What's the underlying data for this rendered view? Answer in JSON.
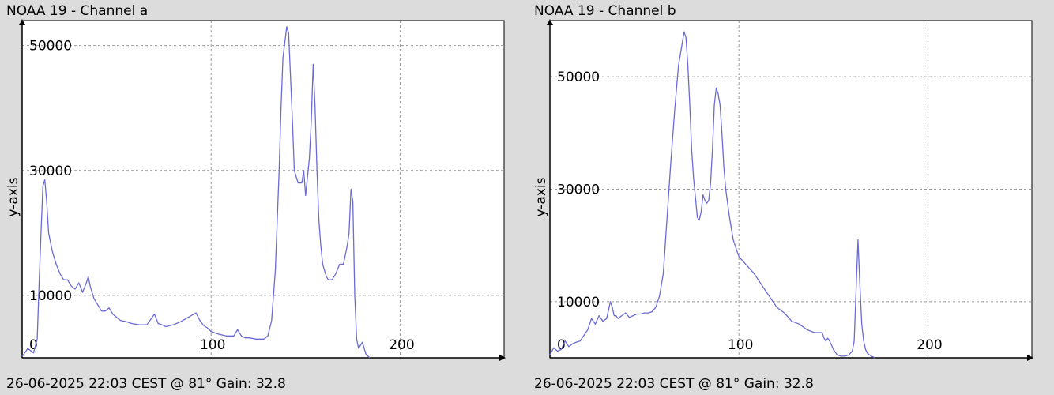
{
  "panels": [
    {
      "title": "NOAA 19 - Channel a",
      "footer": "26-06-2025 22:03 CEST @ 81° Gain: 32.8"
    },
    {
      "title": "NOAA 19 - Channel b",
      "footer": "26-06-2025 22:03 CEST @ 81° Gain: 32.8"
    }
  ],
  "colors": {
    "series": "#6b6bd6",
    "background": "#dcdcdc",
    "plot": "#ffffff"
  },
  "chart_data": [
    {
      "type": "line",
      "title": "NOAA 19 - Channel a",
      "xlabel": "",
      "ylabel": "y-axis",
      "xlim": [
        0,
        255
      ],
      "ylim": [
        0,
        54000
      ],
      "xticks": [
        {
          "value": 100,
          "label": "100"
        },
        {
          "value": 200,
          "label": "200"
        }
      ],
      "yticks": [
        {
          "value": 10000,
          "label": "10000"
        },
        {
          "value": 30000,
          "label": "30000"
        },
        {
          "value": 50000,
          "label": "50000"
        }
      ],
      "y_zero_label": "0",
      "grid": true,
      "series": [
        {
          "x": [
            0,
            3,
            6,
            8,
            9,
            10,
            11,
            12,
            13,
            14,
            16,
            18,
            20,
            22,
            24,
            26,
            28,
            30,
            32,
            34,
            35,
            36,
            38,
            40,
            42,
            44,
            46,
            48,
            50,
            52,
            55,
            58,
            62,
            66,
            70,
            72,
            74,
            76,
            80,
            84,
            88,
            92,
            94,
            96,
            98,
            100,
            104,
            108,
            112,
            114,
            116,
            118,
            120,
            124,
            128,
            130,
            132,
            134,
            136,
            137,
            138,
            140,
            141,
            142,
            143,
            144,
            146,
            148,
            149,
            150,
            152,
            153,
            154,
            155,
            156,
            157,
            158,
            159,
            160,
            161,
            162,
            164,
            166,
            168,
            170,
            172,
            173,
            174,
            175,
            176,
            177,
            178,
            180,
            182,
            184
          ],
          "y": [
            200,
            1500,
            800,
            3000,
            12000,
            20000,
            27500,
            28500,
            25000,
            20000,
            17000,
            15000,
            13500,
            12500,
            12500,
            11500,
            11000,
            12000,
            10500,
            12000,
            13000,
            11500,
            9500,
            8500,
            7500,
            7500,
            8000,
            7000,
            6500,
            6000,
            5800,
            5500,
            5300,
            5300,
            7000,
            5500,
            5300,
            5000,
            5300,
            5800,
            6500,
            7200,
            6000,
            5200,
            4800,
            4200,
            3800,
            3500,
            3500,
            4500,
            3500,
            3200,
            3200,
            3000,
            3000,
            3500,
            6000,
            14000,
            30000,
            40000,
            48000,
            53000,
            52000,
            45000,
            38000,
            30000,
            28000,
            28000,
            30000,
            26000,
            32000,
            38000,
            47000,
            40000,
            30000,
            22000,
            18000,
            15000,
            14000,
            13000,
            12500,
            12500,
            13500,
            15000,
            15000,
            18000,
            20000,
            27000,
            25000,
            10000,
            3000,
            1500,
            2500,
            500,
            0
          ]
        }
      ]
    },
    {
      "type": "line",
      "title": "NOAA 19 - Channel b",
      "xlabel": "",
      "ylabel": "y-axis",
      "xlim": [
        0,
        255
      ],
      "ylim": [
        0,
        60000
      ],
      "xticks": [
        {
          "value": 100,
          "label": "100"
        },
        {
          "value": 200,
          "label": "200"
        }
      ],
      "yticks": [
        {
          "value": 10000,
          "label": "10000"
        },
        {
          "value": 30000,
          "label": "30000"
        },
        {
          "value": 50000,
          "label": "50000"
        }
      ],
      "y_zero_label": "0",
      "grid": true,
      "series": [
        {
          "x": [
            0,
            2,
            4,
            6,
            8,
            10,
            12,
            14,
            16,
            18,
            20,
            22,
            24,
            26,
            28,
            30,
            32,
            33,
            34,
            35,
            36,
            38,
            40,
            42,
            44,
            46,
            48,
            50,
            52,
            54,
            56,
            58,
            60,
            62,
            64,
            66,
            68,
            70,
            71,
            72,
            73,
            74,
            75,
            76,
            77,
            78,
            79,
            80,
            81,
            82,
            83,
            84,
            85,
            86,
            87,
            88,
            89,
            90,
            91,
            92,
            93,
            95,
            97,
            100,
            104,
            108,
            112,
            116,
            120,
            124,
            128,
            132,
            136,
            140,
            144,
            145,
            146,
            147,
            148,
            150,
            152,
            154,
            156,
            158,
            160,
            161,
            162,
            163,
            164,
            165,
            166,
            167,
            168,
            170,
            172
          ],
          "y": [
            500,
            1800,
            1200,
            1500,
            3000,
            2000,
            2500,
            2800,
            3000,
            4000,
            5000,
            7000,
            6000,
            7500,
            6500,
            7000,
            10000,
            9000,
            7500,
            7500,
            7000,
            7500,
            8000,
            7200,
            7500,
            7800,
            7800,
            8000,
            8000,
            8200,
            9000,
            11000,
            15000,
            25000,
            35000,
            44000,
            52000,
            56000,
            58000,
            57000,
            52000,
            45000,
            37000,
            32000,
            28500,
            25000,
            24500,
            26000,
            29000,
            28000,
            27500,
            28000,
            31000,
            37000,
            45000,
            48000,
            47000,
            45000,
            40000,
            34000,
            30000,
            25000,
            21000,
            18000,
            16500,
            15000,
            13000,
            11000,
            9000,
            8000,
            6500,
            6000,
            5000,
            4500,
            4500,
            3500,
            3000,
            3500,
            3000,
            1500,
            500,
            300,
            300,
            500,
            1200,
            3000,
            12000,
            21000,
            13000,
            6000,
            3000,
            1500,
            800,
            300,
            0
          ]
        }
      ]
    }
  ]
}
